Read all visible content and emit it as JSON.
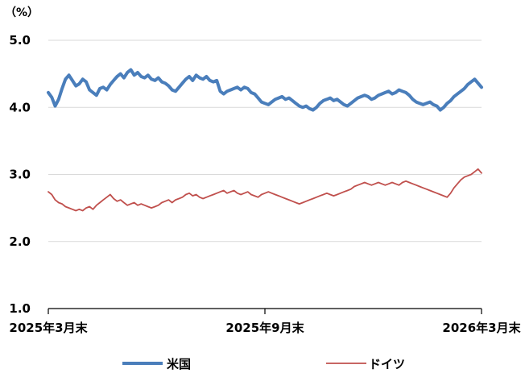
{
  "chart_data": {
    "type": "line",
    "title": "",
    "xlabel": "",
    "ylabel": "",
    "unit_label": "（%）",
    "ylim": [
      1.0,
      5.0
    ],
    "y_ticks": [
      "5.0",
      "4.0",
      "3.0",
      "2.0",
      "1.0"
    ],
    "y_tick_values": [
      5.0,
      4.0,
      3.0,
      2.0,
      1.0
    ],
    "x_tick_labels": [
      "2025年3月末",
      "2025年9月末",
      "2026年3月末"
    ],
    "gridlines": true,
    "legend_position": "bottom",
    "series": [
      {
        "name": "米国",
        "color": "#4a7ebb",
        "values": [
          4.22,
          4.15,
          4.02,
          4.12,
          4.28,
          4.42,
          4.48,
          4.4,
          4.32,
          4.35,
          4.42,
          4.38,
          4.26,
          4.22,
          4.18,
          4.28,
          4.3,
          4.26,
          4.34,
          4.4,
          4.46,
          4.5,
          4.44,
          4.52,
          4.56,
          4.48,
          4.52,
          4.46,
          4.44,
          4.48,
          4.42,
          4.4,
          4.44,
          4.38,
          4.36,
          4.32,
          4.26,
          4.24,
          4.3,
          4.36,
          4.42,
          4.46,
          4.4,
          4.48,
          4.44,
          4.42,
          4.46,
          4.4,
          4.38,
          4.4,
          4.24,
          4.2,
          4.24,
          4.26,
          4.28,
          4.3,
          4.26,
          4.3,
          4.28,
          4.22,
          4.2,
          4.14,
          4.08,
          4.06,
          4.04,
          4.08,
          4.12,
          4.14,
          4.16,
          4.12,
          4.14,
          4.1,
          4.06,
          4.02,
          4.0,
          4.02,
          3.98,
          3.96,
          4.0,
          4.06,
          4.1,
          4.12,
          4.14,
          4.1,
          4.12,
          4.08,
          4.04,
          4.02,
          4.06,
          4.1,
          4.14,
          4.16,
          4.18,
          4.16,
          4.12,
          4.14,
          4.18,
          4.2,
          4.22,
          4.24,
          4.2,
          4.22,
          4.26,
          4.24,
          4.22,
          4.18,
          4.12,
          4.08,
          4.06,
          4.04,
          4.06,
          4.08,
          4.04,
          4.02,
          3.96,
          4.0,
          4.06,
          4.1,
          4.16,
          4.2,
          4.24,
          4.28,
          4.34,
          4.38,
          4.42,
          4.36,
          4.3
        ]
      },
      {
        "name": "ドイツ",
        "color": "#c0504d",
        "values": [
          2.74,
          2.7,
          2.62,
          2.58,
          2.56,
          2.52,
          2.5,
          2.48,
          2.46,
          2.48,
          2.46,
          2.5,
          2.52,
          2.48,
          2.54,
          2.58,
          2.62,
          2.66,
          2.7,
          2.64,
          2.6,
          2.62,
          2.58,
          2.54,
          2.56,
          2.58,
          2.54,
          2.56,
          2.54,
          2.52,
          2.5,
          2.52,
          2.54,
          2.58,
          2.6,
          2.62,
          2.58,
          2.62,
          2.64,
          2.66,
          2.7,
          2.72,
          2.68,
          2.7,
          2.66,
          2.64,
          2.66,
          2.68,
          2.7,
          2.72,
          2.74,
          2.76,
          2.72,
          2.74,
          2.76,
          2.72,
          2.7,
          2.72,
          2.74,
          2.7,
          2.68,
          2.66,
          2.7,
          2.72,
          2.74,
          2.72,
          2.7,
          2.68,
          2.66,
          2.64,
          2.62,
          2.6,
          2.58,
          2.56,
          2.58,
          2.6,
          2.62,
          2.64,
          2.66,
          2.68,
          2.7,
          2.72,
          2.7,
          2.68,
          2.7,
          2.72,
          2.74,
          2.76,
          2.78,
          2.82,
          2.84,
          2.86,
          2.88,
          2.86,
          2.84,
          2.86,
          2.88,
          2.86,
          2.84,
          2.86,
          2.88,
          2.86,
          2.84,
          2.88,
          2.9,
          2.88,
          2.86,
          2.84,
          2.82,
          2.8,
          2.78,
          2.76,
          2.74,
          2.72,
          2.7,
          2.68,
          2.66,
          2.72,
          2.8,
          2.86,
          2.92,
          2.96,
          2.98,
          3.0,
          3.04,
          3.08,
          3.02
        ]
      }
    ]
  }
}
